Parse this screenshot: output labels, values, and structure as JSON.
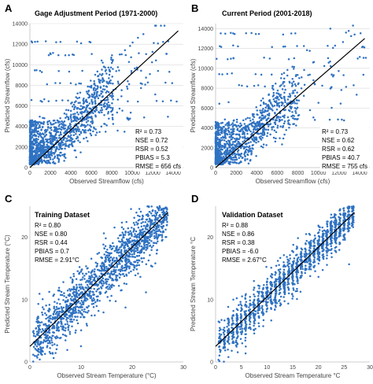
{
  "chart_data": [
    {
      "letter": "A",
      "type": "scatter",
      "title": "Gage Adjustment Period (1971-2000)",
      "xlabel": "Observed Streamflow (cfs)",
      "ylabel": "Predicted Streamflow (cfs)",
      "xlim": [
        0,
        15000
      ],
      "ylim": [
        0,
        14000
      ],
      "xticks": [
        0,
        2000,
        4000,
        6000,
        8000,
        10000,
        12000,
        14000
      ],
      "xtick_labels": [
        "0",
        "2000",
        "4000",
        "6000",
        "8000",
        "10000",
        "12000",
        "14000"
      ],
      "yticks": [
        0,
        2000,
        4000,
        6000,
        8000,
        10000,
        12000,
        14000
      ],
      "ytick_labels": [
        "0",
        "2000",
        "4000",
        "6000",
        "8000",
        "10000",
        "12000",
        "14000"
      ],
      "grid": "horizontal",
      "fit_line": {
        "x": [
          0,
          14500
        ],
        "y": [
          0,
          13300
        ]
      },
      "stats": [
        "R² = 0.73",
        "NSE = 0.72",
        "RSR = 0.52",
        "PBIAS = 5.3",
        "RMSE = 656 cfs"
      ],
      "scatter_model": {
        "kind": "flow",
        "seed": 11,
        "n": 1300,
        "slope": 0.92,
        "spread": 650,
        "xmax": 14800,
        "levels": [
          12200,
          11000,
          9400,
          8200,
          6500,
          4800,
          3500
        ],
        "level_points": 16
      }
    },
    {
      "letter": "B",
      "type": "scatter",
      "title": "Current Period (2001-2018)",
      "xlabel": "Observed Streamflow (cfs)",
      "ylabel": "Predicted Streamflow (cfs)",
      "xlim": [
        0,
        15000
      ],
      "ylim": [
        0,
        14500
      ],
      "xticks": [
        0,
        2000,
        4000,
        6000,
        8000,
        10000,
        12000,
        14000
      ],
      "xtick_labels": [
        "0",
        "2000",
        "4000",
        "6000",
        "8000",
        "10000",
        "12000",
        "14000"
      ],
      "yticks": [
        0,
        2000,
        4000,
        6000,
        8000,
        10000,
        12000,
        14000
      ],
      "ytick_labels": [
        "0",
        "2000",
        "4000",
        "6000",
        "8000",
        "10000",
        "12000",
        "14000"
      ],
      "grid": "horizontal",
      "fit_line": {
        "x": [
          0,
          14500
        ],
        "y": [
          0,
          13000
        ]
      },
      "stats": [
        "R² = 0.73",
        "NSE = 0.62",
        "RSR = 0.62",
        "PBIAS = 40.7",
        "RMSE = 755 cfs"
      ],
      "scatter_model": {
        "kind": "flow",
        "seed": 23,
        "n": 1100,
        "slope": 0.9,
        "spread": 700,
        "xmax": 14800,
        "levels": [
          13500,
          12200,
          11000,
          9400,
          8200,
          6500,
          4800
        ],
        "level_points": 14
      }
    },
    {
      "letter": "C",
      "type": "scatter",
      "title": "Training Dataset",
      "xlabel": "Observed Stream Temperature (°C)",
      "ylabel": "Predicted Stream Temperature (°C)",
      "xlim": [
        0,
        30
      ],
      "ylim": [
        0,
        25
      ],
      "xticks": [
        0,
        10,
        20,
        30
      ],
      "xtick_labels": [
        "0",
        "10",
        "20",
        "30"
      ],
      "yticks": [
        0,
        10,
        20
      ],
      "ytick_labels": [
        "0",
        "10",
        "20"
      ],
      "grid": "none",
      "fit_line": {
        "x": [
          0,
          27
        ],
        "y": [
          2.5,
          24
        ]
      },
      "stats": [
        "R² = 0.80",
        "NSE = 0.80",
        "RSR = 0.44",
        "PBIAS = 0.7",
        "RMSE = 2.91°C"
      ],
      "scatter_model": {
        "kind": "temp",
        "seed": 37,
        "n": 1500,
        "slope": 0.8,
        "intercept": 2.5,
        "spread": 2.6,
        "xmax": 27,
        "banded": false
      }
    },
    {
      "letter": "D",
      "type": "scatter",
      "title": "Validation Dataset",
      "xlabel": "Observed Stream Temperature °C",
      "ylabel": "Predicted Stream Temperature °C",
      "xlim": [
        0,
        30
      ],
      "ylim": [
        0,
        25
      ],
      "xticks": [
        0,
        5,
        10,
        15,
        20,
        25,
        30
      ],
      "xtick_labels": [
        "0",
        "5",
        "10",
        "15",
        "20",
        "25",
        "30"
      ],
      "yticks": [
        0,
        10,
        20
      ],
      "ytick_labels": [
        "0",
        "10",
        "20"
      ],
      "grid": "none",
      "fit_line": {
        "x": [
          0,
          27
        ],
        "y": [
          2.5,
          24
        ]
      },
      "stats": [
        "R² = 0.88",
        "NSE = 0.86",
        "RSR = 0.38",
        "PBIAS = -6.0",
        "RMSE = 2.67°C"
      ],
      "scatter_model": {
        "kind": "temp",
        "seed": 53,
        "n": 1400,
        "slope": 0.8,
        "intercept": 2.5,
        "spread": 1.9,
        "xmax": 27,
        "banded": true
      }
    }
  ]
}
